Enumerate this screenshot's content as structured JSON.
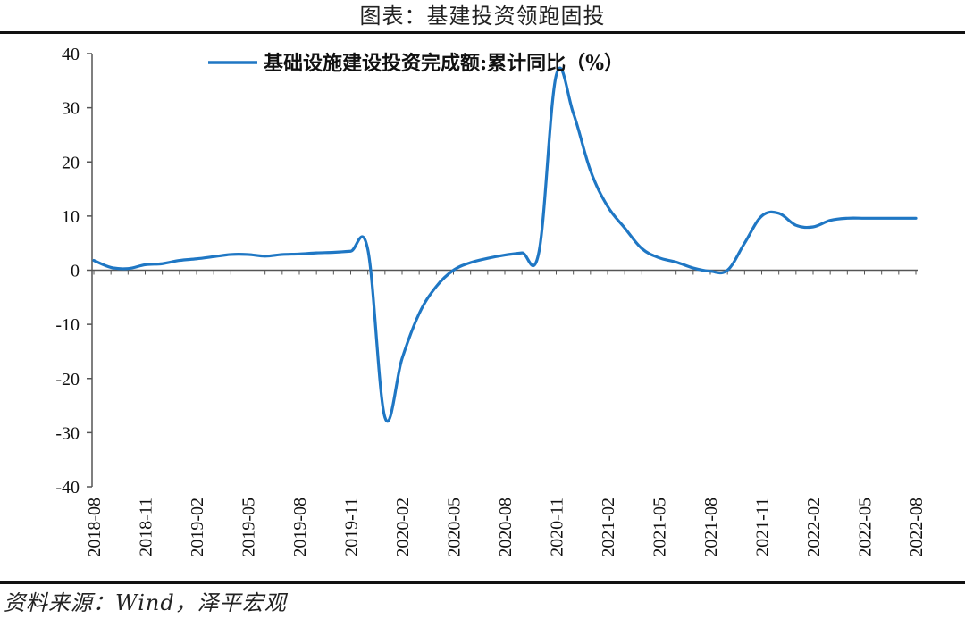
{
  "header": {
    "title": "图表：基建投资领跑固投"
  },
  "footer": {
    "source": "资料来源：Wind，泽平宏观"
  },
  "colors": {
    "series": "#1f77c4",
    "axis": "#555555",
    "text": "#111111"
  },
  "chart_data": {
    "type": "line",
    "title": "图表：基建投资领跑固投",
    "ylim": [
      -40,
      40
    ],
    "yticks": [
      40,
      30,
      20,
      10,
      0,
      -10,
      -20,
      -30,
      -40
    ],
    "x_tick_labels": [
      "2018-08",
      "2018-11",
      "2019-02",
      "2019-05",
      "2019-08",
      "2019-11",
      "2020-02",
      "2020-05",
      "2020-08",
      "2020-11",
      "2021-02",
      "2021-05",
      "2021-08",
      "2021-11",
      "2022-02",
      "2022-05",
      "2022-08"
    ],
    "legend": "top-center",
    "grid": false,
    "series": [
      {
        "name": "基础设施建设投资完成额:累计同比（%）",
        "x": [
          "2018-08",
          "2018-09",
          "2018-10",
          "2018-11",
          "2018-12",
          "2019-01",
          "2019-02",
          "2019-03",
          "2019-04",
          "2019-05",
          "2019-06",
          "2019-07",
          "2019-08",
          "2019-09",
          "2019-10",
          "2019-11",
          "2019-12",
          "2020-01",
          "2020-02",
          "2020-03",
          "2020-04",
          "2020-05",
          "2020-06",
          "2020-07",
          "2020-08",
          "2020-09",
          "2020-10",
          "2020-11",
          "2020-12",
          "2021-01",
          "2021-02",
          "2021-03",
          "2021-04",
          "2021-05",
          "2021-06",
          "2021-07",
          "2021-08",
          "2021-09",
          "2021-10",
          "2021-11",
          "2021-12",
          "2022-01",
          "2022-02",
          "2022-03",
          "2022-04",
          "2022-05",
          "2022-06",
          "2022-07",
          "2022-08"
        ],
        "values": [
          1.8,
          0.5,
          0.3,
          1.0,
          1.2,
          1.8,
          2.1,
          2.5,
          2.9,
          2.9,
          2.6,
          2.9,
          3.0,
          3.2,
          3.3,
          3.5,
          3.8,
          -27.2,
          -16.3,
          -8.0,
          -3.0,
          0.0,
          1.4,
          2.2,
          2.8,
          3.2,
          3.5,
          36.0,
          29.0,
          18.4,
          11.8,
          7.8,
          4.0,
          2.3,
          1.5,
          0.4,
          -0.2,
          0.0,
          5.0,
          10.0,
          10.5,
          8.3,
          8.0,
          9.2,
          9.6,
          9.6,
          9.6,
          9.6,
          9.6
        ]
      }
    ]
  }
}
